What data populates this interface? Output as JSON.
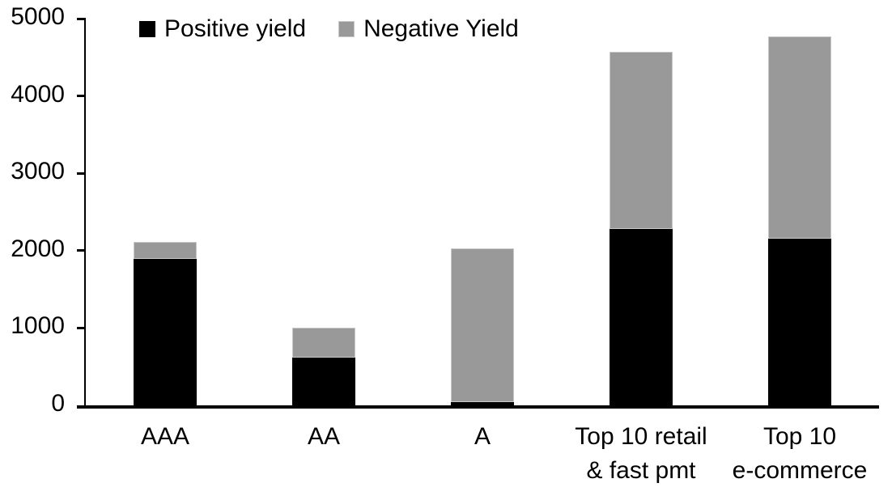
{
  "chart_data": {
    "type": "bar",
    "stacked": true,
    "title": "",
    "xlabel": "",
    "ylabel": "",
    "categories": [
      "AAA",
      "AA",
      "A",
      "Top 10 retail\n& fast pmt",
      "Top 10\ne-commerce"
    ],
    "series": [
      {
        "name": "Positive yield",
        "color": "#000000",
        "values": [
          1890,
          615,
          45,
          2280,
          2150
        ]
      },
      {
        "name": "Negative Yield",
        "color": "#999999",
        "values": [
          220,
          385,
          1985,
          2290,
          2620
        ]
      }
    ],
    "totals": [
      2110,
      1000,
      2030,
      4570,
      4770
    ],
    "ylim": [
      0,
      5000
    ],
    "yticks": [
      0,
      1000,
      2000,
      3000,
      4000,
      5000
    ],
    "grid": false,
    "legend_position": "top-left",
    "axis_color": "#000000",
    "background_color": "#ffffff"
  }
}
